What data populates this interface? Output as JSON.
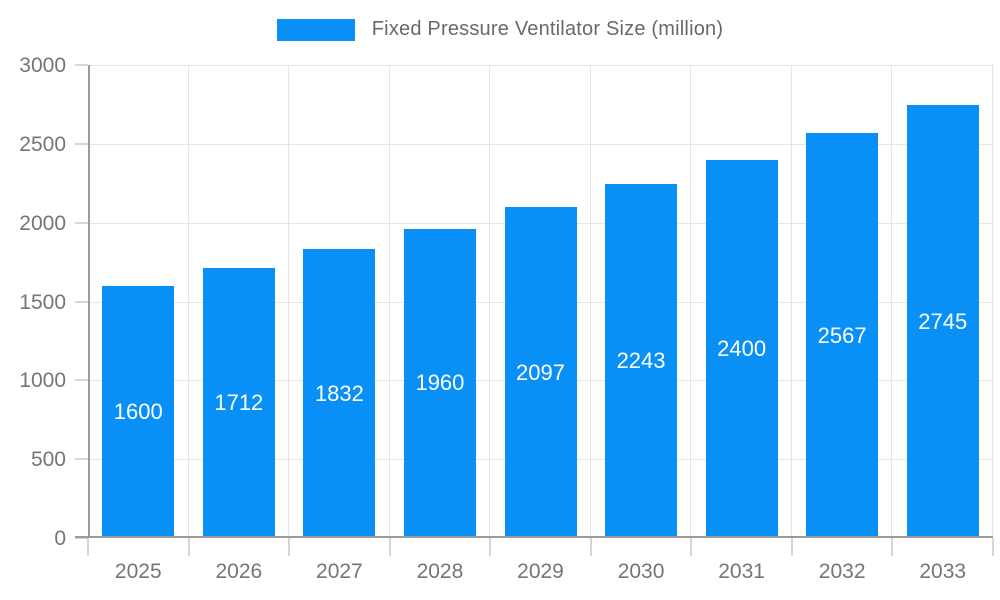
{
  "legend": {
    "label": "Fixed Pressure Ventilator Size (million)"
  },
  "colors": {
    "bar": "#0990f7",
    "grid_line": "#e6e6e6",
    "axis_line": "#9b9b9b",
    "tick_line": "#d6d6d6",
    "axis_label_text": "#757575",
    "legend_text": "#696969",
    "value_label_text": "#ffffff",
    "background": "#ffffff"
  },
  "chart_data": {
    "type": "bar",
    "title": "Fixed Pressure Ventilator Size (million)",
    "categories": [
      "2025",
      "2026",
      "2027",
      "2028",
      "2029",
      "2030",
      "2031",
      "2032",
      "2033"
    ],
    "values": [
      1600,
      1712,
      1832,
      1960,
      2097,
      2243,
      2400,
      2567,
      2745
    ],
    "value_labels": [
      "1600",
      "1712",
      "1832",
      "1960",
      "2097",
      "2243",
      "2400",
      "2567",
      "2745"
    ],
    "xlabel": "",
    "ylabel": "",
    "ylim": [
      0,
      3000
    ],
    "y_ticks": [
      0,
      500,
      1000,
      1500,
      2000,
      2500,
      3000
    ],
    "grid": true,
    "legend_position": "top-center",
    "value_label_position": "inside-center"
  }
}
